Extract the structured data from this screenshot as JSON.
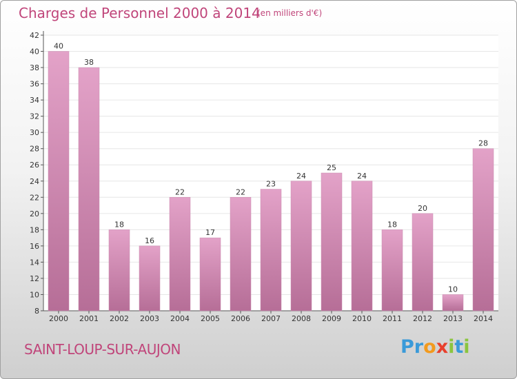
{
  "chart_data": {
    "type": "bar",
    "title": "Charges de Personnel 2000 à 2014",
    "subtitle": "(en milliers d'€)",
    "categories": [
      "2000",
      "2001",
      "2002",
      "2003",
      "2004",
      "2005",
      "2006",
      "2007",
      "2008",
      "2009",
      "2010",
      "2011",
      "2012",
      "2013",
      "2014"
    ],
    "values": [
      40,
      38,
      18,
      16,
      22,
      17,
      22,
      23,
      24,
      25,
      24,
      18,
      20,
      10,
      28
    ],
    "ylim": [
      8,
      42
    ],
    "yticks": [
      8,
      10,
      12,
      14,
      16,
      18,
      20,
      22,
      24,
      26,
      28,
      30,
      32,
      34,
      36,
      38,
      40,
      42
    ],
    "grid": true,
    "colors": {
      "bar": "#e3a2c8",
      "bar_dark": "#b66e97",
      "title": "#c0457a",
      "grid": "#e6e6e6"
    }
  },
  "footer": {
    "place": "SAINT-LOUP-SUR-AUJON",
    "logo_letters": [
      {
        "ch": "P",
        "color": "#3a9ad9"
      },
      {
        "ch": "r",
        "color": "#3a9ad9"
      },
      {
        "ch": "o",
        "color": "#f29a1e"
      },
      {
        "ch": "x",
        "color": "#e8402d"
      },
      {
        "ch": "i",
        "color": "#8bc53f"
      },
      {
        "ch": "t",
        "color": "#3a9ad9"
      },
      {
        "ch": "i",
        "color": "#8bc53f"
      }
    ]
  }
}
